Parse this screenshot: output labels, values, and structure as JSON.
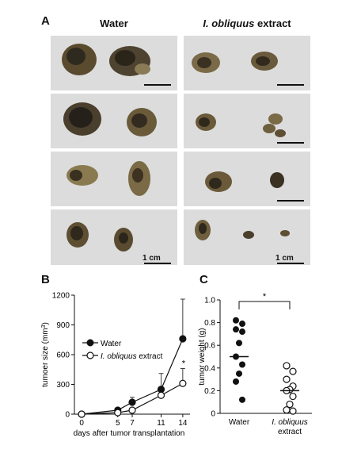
{
  "panels": {
    "a": "A",
    "b": "B",
    "c": "C"
  },
  "photos": {
    "water_title": "Water",
    "extract_title_italic": "I. obliquus",
    "extract_title_rest": " extract",
    "scale_label": "1 cm"
  },
  "chart_data": [
    {
      "type": "line",
      "ylabel_main": "tumoer size (mm",
      "ylabel_sup": "3",
      "ylabel_close": ")",
      "xlabel": "days after tumor transplantation",
      "x": [
        0,
        5,
        7,
        11,
        14
      ],
      "xticks": [
        "0",
        "5",
        "7",
        "11",
        "14"
      ],
      "yticks": [
        "0",
        "300",
        "600",
        "900",
        "1200"
      ],
      "ylim": [
        0,
        1200
      ],
      "xlim": [
        -1,
        15
      ],
      "series": [
        {
          "name": "Water",
          "marker": "filled",
          "values": [
            0,
            40,
            120,
            250,
            760
          ],
          "err": [
            0,
            15,
            50,
            160,
            400
          ]
        },
        {
          "name_italic": "I. obliquus",
          "name_rest": " extract",
          "marker": "open",
          "values": [
            0,
            15,
            40,
            190,
            310
          ],
          "err": [
            0,
            8,
            20,
            50,
            150
          ]
        }
      ],
      "annotation": "*"
    },
    {
      "type": "scatter",
      "ylabel": "tumor weight (g)",
      "yticks": [
        "0",
        "0.2",
        "0.4",
        "0.6",
        "0.8",
        "1.0"
      ],
      "ylim": [
        0,
        1.0
      ],
      "categories": [
        "Water",
        "I. obliquus",
        "extract"
      ],
      "water_values": [
        0.82,
        0.79,
        0.74,
        0.72,
        0.62,
        0.5,
        0.43,
        0.35,
        0.28,
        0.12
      ],
      "water_mean": 0.5,
      "extract_values": [
        0.42,
        0.37,
        0.3,
        0.24,
        0.21,
        0.2,
        0.15,
        0.08,
        0.03,
        0.02
      ],
      "extract_mean": 0.2,
      "significance": "*"
    }
  ]
}
